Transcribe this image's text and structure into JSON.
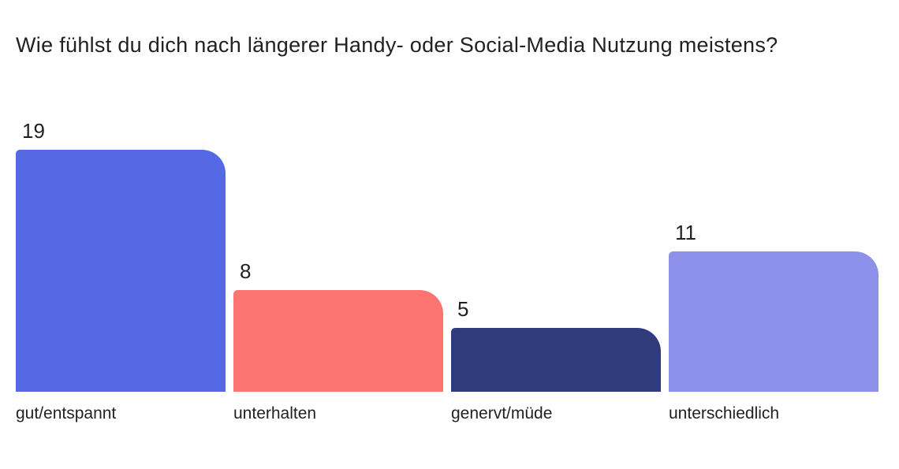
{
  "title": "Wie fühlst du dich nach längerer Handy- oder Social-Media Nutzung meistens?",
  "colors": {
    "background": "#ffffff",
    "text": "#1f2023",
    "title_text": "#212124"
  },
  "chart_data": {
    "type": "bar",
    "title": "Wie fühlst du dich nach längerer Handy- oder Social-Media Nutzung meistens?",
    "categories": [
      "gut/entspannt",
      "unterhalten",
      "genervt/müde",
      "unterschiedlich"
    ],
    "values": [
      19,
      8,
      5,
      11
    ],
    "bar_colors": [
      "#5669E4",
      "#FC7472",
      "#303B7B",
      "#8D90E8"
    ],
    "value_labels_shown": true,
    "value_label_position": "above-bar-left",
    "xlabel": "",
    "ylabel": "",
    "ylim": [
      0,
      19
    ],
    "grid": false,
    "legend": "none",
    "orientation": "vertical"
  }
}
